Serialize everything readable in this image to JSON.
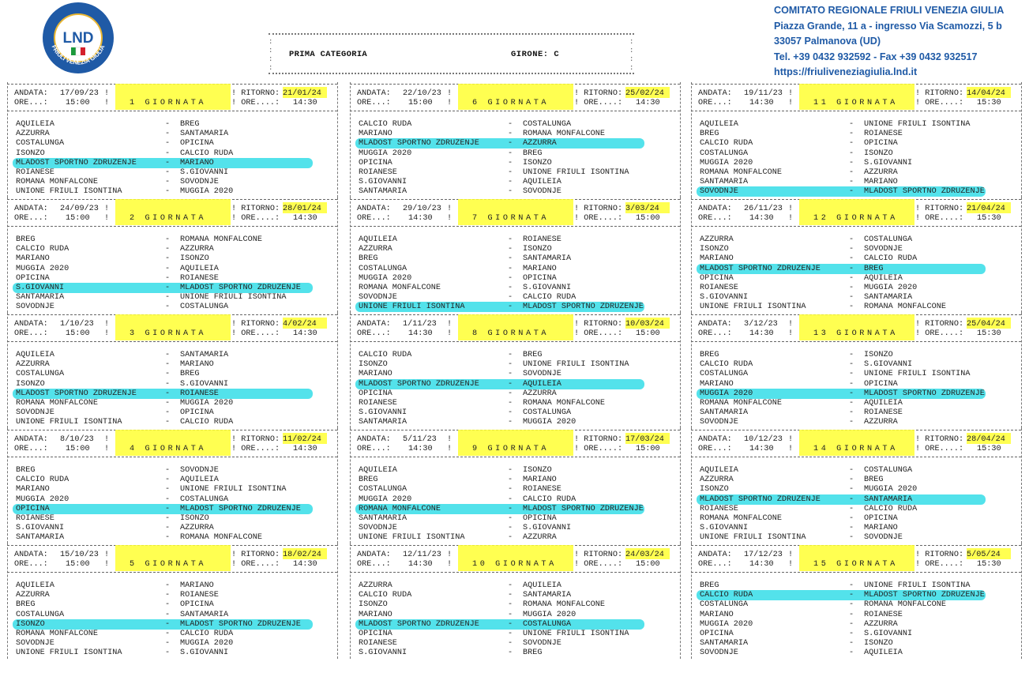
{
  "logo": {
    "text": "LND",
    "ring_text": "FRIULI VENEZIA GIULIA"
  },
  "committee": [
    "COMITATO REGIONALE FRIULI VENEZIA GIULIA",
    "Piazza Grande, 11 a - ingresso Via Scamozzi, 5 b",
    "33057 Palmanova (UD)",
    "Tel. +39 0432 932592 - Fax +39 0432 932517",
    "https://friuliveneziagiulia.lnd.it"
  ],
  "header": {
    "category": "PRIMA CATEGORIA",
    "girone": "GIRONE:  C"
  },
  "labels": {
    "andata": "ANDATA:",
    "ritorno": "! RITORNO:",
    "ore": "ORE...:",
    "ore_r": "! ORE....:"
  },
  "rounds": [
    {
      "n": "1",
      "andata": "17/09/23",
      "ore_a": "15:00",
      "ritorno": "21/01/24",
      "ore_r": "14:30",
      "matches": [
        [
          "AQUILEIA",
          "BREG"
        ],
        [
          "AZZURRA",
          "SANTAMARIA"
        ],
        [
          "COSTALUNGA",
          "OPICINA"
        ],
        [
          "ISONZO",
          "CALCIO RUDA"
        ],
        [
          "MLADOST SPORTNO ZDRUZENJE",
          "MARIANO"
        ],
        [
          "ROIANESE",
          "S.GIOVANNI"
        ],
        [
          "ROMANA MONFALCONE",
          "SOVODNJE"
        ],
        [
          "UNIONE FRIULI ISONTINA",
          "MUGGIA 2020"
        ]
      ],
      "hl": 4
    },
    {
      "n": "2",
      "andata": "24/09/23",
      "ore_a": "15:00",
      "ritorno": "28/01/24",
      "ore_r": "14:30",
      "matches": [
        [
          "BREG",
          "ROMANA MONFALCONE"
        ],
        [
          "CALCIO RUDA",
          "AZZURRA"
        ],
        [
          "MARIANO",
          "ISONZO"
        ],
        [
          "MUGGIA 2020",
          "AQUILEIA"
        ],
        [
          "OPICINA",
          "ROIANESE"
        ],
        [
          "S.GIOVANNI",
          "MLADOST SPORTNO ZDRUZENJE"
        ],
        [
          "SANTAMARIA",
          "UNIONE FRIULI ISONTINA"
        ],
        [
          "SOVODNJE",
          "COSTALUNGA"
        ]
      ],
      "hl": 5
    },
    {
      "n": "3",
      "andata": "1/10/23",
      "ore_a": "15:00",
      "ritorno": "4/02/24",
      "ore_r": "14:30",
      "matches": [
        [
          "AQUILEIA",
          "SANTAMARIA"
        ],
        [
          "AZZURRA",
          "MARIANO"
        ],
        [
          "COSTALUNGA",
          "BREG"
        ],
        [
          "ISONZO",
          "S.GIOVANNI"
        ],
        [
          "MLADOST SPORTNO ZDRUZENJE",
          "ROIANESE"
        ],
        [
          "ROMANA MONFALCONE",
          "MUGGIA 2020"
        ],
        [
          "SOVODNJE",
          "OPICINA"
        ],
        [
          "UNIONE FRIULI ISONTINA",
          "CALCIO RUDA"
        ]
      ],
      "hl": 4
    },
    {
      "n": "4",
      "andata": "8/10/23",
      "ore_a": "15:00",
      "ritorno": "11/02/24",
      "ore_r": "14:30",
      "matches": [
        [
          "BREG",
          "SOVODNJE"
        ],
        [
          "CALCIO RUDA",
          "AQUILEIA"
        ],
        [
          "MARIANO",
          "UNIONE FRIULI ISONTINA"
        ],
        [
          "MUGGIA 2020",
          "COSTALUNGA"
        ],
        [
          "OPICINA",
          "MLADOST SPORTNO ZDRUZENJE"
        ],
        [
          "ROIANESE",
          "ISONZO"
        ],
        [
          "S.GIOVANNI",
          "AZZURRA"
        ],
        [
          "SANTAMARIA",
          "ROMANA MONFALCONE"
        ]
      ],
      "hl": 4
    },
    {
      "n": "5",
      "andata": "15/10/23",
      "ore_a": "15:00",
      "ritorno": "18/02/24",
      "ore_r": "14:30",
      "matches": [
        [
          "AQUILEIA",
          "MARIANO"
        ],
        [
          "AZZURRA",
          "ROIANESE"
        ],
        [
          "BREG",
          "OPICINA"
        ],
        [
          "COSTALUNGA",
          "SANTAMARIA"
        ],
        [
          "ISONZO",
          "MLADOST SPORTNO ZDRUZENJE"
        ],
        [
          "ROMANA MONFALCONE",
          "CALCIO RUDA"
        ],
        [
          "SOVODNJE",
          "MUGGIA 2020"
        ],
        [
          "UNIONE FRIULI ISONTINA",
          "S.GIOVANNI"
        ]
      ],
      "hl": 4
    },
    {
      "n": "6",
      "andata": "22/10/23",
      "ore_a": "15:00",
      "ritorno": "25/02/24",
      "ore_r": "14:30",
      "matches": [
        [
          "CALCIO RUDA",
          "COSTALUNGA"
        ],
        [
          "MARIANO",
          "ROMANA MONFALCONE"
        ],
        [
          "MLADOST SPORTNO ZDRUZENJE",
          "AZZURRA"
        ],
        [
          "MUGGIA 2020",
          "BREG"
        ],
        [
          "OPICINA",
          "ISONZO"
        ],
        [
          "ROIANESE",
          "UNIONE FRIULI ISONTINA"
        ],
        [
          "S.GIOVANNI",
          "AQUILEIA"
        ],
        [
          "SANTAMARIA",
          "SOVODNJE"
        ]
      ],
      "hl": 2
    },
    {
      "n": "7",
      "andata": "29/10/23",
      "ore_a": "14:30",
      "ritorno": "3/03/24",
      "ore_r": "15:00",
      "matches": [
        [
          "AQUILEIA",
          "ROIANESE"
        ],
        [
          "AZZURRA",
          "ISONZO"
        ],
        [
          "BREG",
          "SANTAMARIA"
        ],
        [
          "COSTALUNGA",
          "MARIANO"
        ],
        [
          "MUGGIA 2020",
          "OPICINA"
        ],
        [
          "ROMANA MONFALCONE",
          "S.GIOVANNI"
        ],
        [
          "SOVODNJE",
          "CALCIO RUDA"
        ],
        [
          "UNIONE FRIULI ISONTINA",
          "MLADOST SPORTNO ZDRUZENJE"
        ]
      ],
      "hl": 7
    },
    {
      "n": "8",
      "andata": "1/11/23",
      "ore_a": "14:30",
      "ritorno": "10/03/24",
      "ore_r": "15:00",
      "matches": [
        [
          "CALCIO RUDA",
          "BREG"
        ],
        [
          "ISONZO",
          "UNIONE FRIULI ISONTINA"
        ],
        [
          "MARIANO",
          "SOVODNJE"
        ],
        [
          "MLADOST SPORTNO ZDRUZENJE",
          "AQUILEIA"
        ],
        [
          "OPICINA",
          "AZZURRA"
        ],
        [
          "ROIANESE",
          "ROMANA MONFALCONE"
        ],
        [
          "S.GIOVANNI",
          "COSTALUNGA"
        ],
        [
          "SANTAMARIA",
          "MUGGIA 2020"
        ]
      ],
      "hl": 3
    },
    {
      "n": "9",
      "andata": "5/11/23",
      "ore_a": "14:30",
      "ritorno": "17/03/24",
      "ore_r": "15:00",
      "matches": [
        [
          "AQUILEIA",
          "ISONZO"
        ],
        [
          "BREG",
          "MARIANO"
        ],
        [
          "COSTALUNGA",
          "ROIANESE"
        ],
        [
          "MUGGIA 2020",
          "CALCIO RUDA"
        ],
        [
          "ROMANA MONFALCONE",
          "MLADOST SPORTNO ZDRUZENJE"
        ],
        [
          "SANTAMARIA",
          "OPICINA"
        ],
        [
          "SOVODNJE",
          "S.GIOVANNI"
        ],
        [
          "UNIONE FRIULI ISONTINA",
          "AZZURRA"
        ]
      ],
      "hl": 4
    },
    {
      "n": "10",
      "andata": "12/11/23",
      "ore_a": "14:30",
      "ritorno": "24/03/24",
      "ore_r": "15:00",
      "matches": [
        [
          "AZZURRA",
          "AQUILEIA"
        ],
        [
          "CALCIO RUDA",
          "SANTAMARIA"
        ],
        [
          "ISONZO",
          "ROMANA MONFALCONE"
        ],
        [
          "MARIANO",
          "MUGGIA 2020"
        ],
        [
          "MLADOST SPORTNO ZDRUZENJE",
          "COSTALUNGA"
        ],
        [
          "OPICINA",
          "UNIONE FRIULI ISONTINA"
        ],
        [
          "ROIANESE",
          "SOVODNJE"
        ],
        [
          "S.GIOVANNI",
          "BREG"
        ]
      ],
      "hl": 4
    },
    {
      "n": "11",
      "andata": "19/11/23",
      "ore_a": "14:30",
      "ritorno": "14/04/24",
      "ore_r": "15:30",
      "matches": [
        [
          "AQUILEIA",
          "UNIONE FRIULI ISONTINA"
        ],
        [
          "BREG",
          "ROIANESE"
        ],
        [
          "CALCIO RUDA",
          "OPICINA"
        ],
        [
          "COSTALUNGA",
          "ISONZO"
        ],
        [
          "MUGGIA 2020",
          "S.GIOVANNI"
        ],
        [
          "ROMANA MONFALCONE",
          "AZZURRA"
        ],
        [
          "SANTAMARIA",
          "MARIANO"
        ],
        [
          "SOVODNJE",
          "MLADOST SPORTNO ZDRUZENJE"
        ]
      ],
      "hl": 7
    },
    {
      "n": "12",
      "andata": "26/11/23",
      "ore_a": "14:30",
      "ritorno": "21/04/24",
      "ore_r": "15:30",
      "matches": [
        [
          "AZZURRA",
          "COSTALUNGA"
        ],
        [
          "ISONZO",
          "SOVODNJE"
        ],
        [
          "MARIANO",
          "CALCIO RUDA"
        ],
        [
          "MLADOST SPORTNO ZDRUZENJE",
          "BREG"
        ],
        [
          "OPICINA",
          "AQUILEIA"
        ],
        [
          "ROIANESE",
          "MUGGIA 2020"
        ],
        [
          "S.GIOVANNI",
          "SANTAMARIA"
        ],
        [
          "UNIONE FRIULI ISONTINA",
          "ROMANA MONFALCONE"
        ]
      ],
      "hl": 3
    },
    {
      "n": "13",
      "andata": "3/12/23",
      "ore_a": "14:30",
      "ritorno": "25/04/24",
      "ore_r": "15:30",
      "matches": [
        [
          "BREG",
          "ISONZO"
        ],
        [
          "CALCIO RUDA",
          "S.GIOVANNI"
        ],
        [
          "COSTALUNGA",
          "UNIONE FRIULI ISONTINA"
        ],
        [
          "MARIANO",
          "OPICINA"
        ],
        [
          "MUGGIA 2020",
          "MLADOST SPORTNO ZDRUZENJE"
        ],
        [
          "ROMANA MONFALCONE",
          "AQUILEIA"
        ],
        [
          "SANTAMARIA",
          "ROIANESE"
        ],
        [
          "SOVODNJE",
          "AZZURRA"
        ]
      ],
      "hl": 4
    },
    {
      "n": "14",
      "andata": "10/12/23",
      "ore_a": "14:30",
      "ritorno": "28/04/24",
      "ore_r": "15:30",
      "matches": [
        [
          "AQUILEIA",
          "COSTALUNGA"
        ],
        [
          "AZZURRA",
          "BREG"
        ],
        [
          "ISONZO",
          "MUGGIA 2020"
        ],
        [
          "MLADOST SPORTNO ZDRUZENJE",
          "SANTAMARIA"
        ],
        [
          "ROIANESE",
          "CALCIO RUDA"
        ],
        [
          "ROMANA MONFALCONE",
          "OPICINA"
        ],
        [
          "S.GIOVANNI",
          "MARIANO"
        ],
        [
          "UNIONE FRIULI ISONTINA",
          "SOVODNJE"
        ]
      ],
      "hl": 3
    },
    {
      "n": "15",
      "andata": "17/12/23",
      "ore_a": "14:30",
      "ritorno": "5/05/24",
      "ore_r": "15:30",
      "matches": [
        [
          "BREG",
          "UNIONE FRIULI ISONTINA"
        ],
        [
          "CALCIO RUDA",
          "MLADOST SPORTNO ZDRUZENJE"
        ],
        [
          "COSTALUNGA",
          "ROMANA MONFALCONE"
        ],
        [
          "MARIANO",
          "ROIANESE"
        ],
        [
          "MUGGIA 2020",
          "AZZURRA"
        ],
        [
          "OPICINA",
          "S.GIOVANNI"
        ],
        [
          "SANTAMARIA",
          "ISONZO"
        ],
        [
          "SOVODNJE",
          "AQUILEIA"
        ]
      ],
      "hl": 1
    }
  ]
}
